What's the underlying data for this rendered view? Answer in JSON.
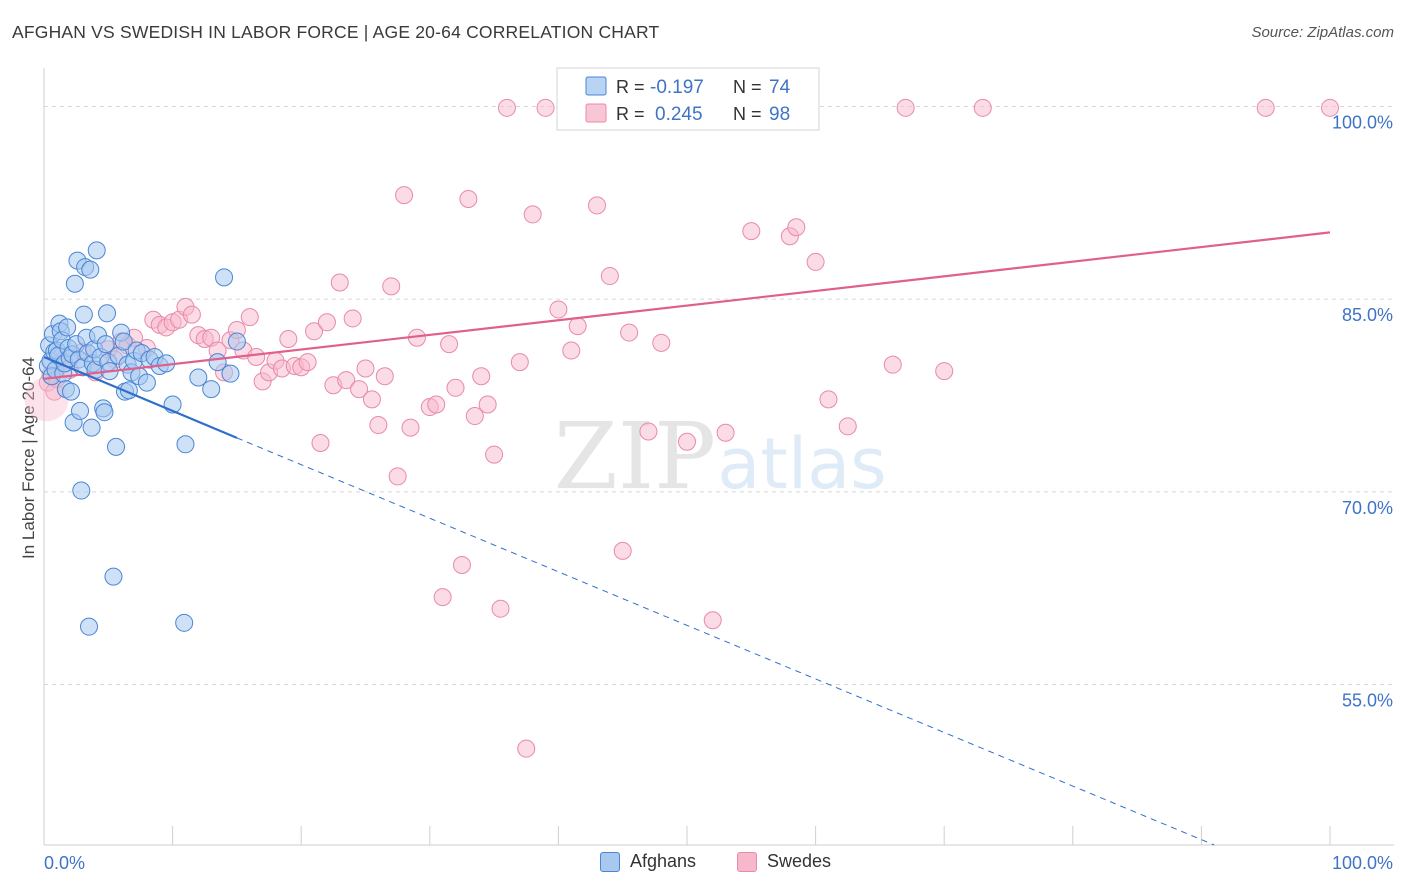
{
  "title": "AFGHAN VS SWEDISH IN LABOR FORCE | AGE 20-64 CORRELATION CHART",
  "source": "Source: ZipAtlas.com",
  "watermark": {
    "zip": "ZIP",
    "atlas": "atlas"
  },
  "colors": {
    "afghans_fill": "#a8c8f0",
    "afghans_stroke": "#4a86d4",
    "afghans_line": "#2f6fcc",
    "swedes_fill": "#f7b8cc",
    "swedes_stroke": "#e88aa8",
    "swedes_line": "#e0608c",
    "value_text": "#3f73c8",
    "grid": "#d8d8d8"
  },
  "legend_top": [
    {
      "r_label": "R =",
      "r_value": "-0.197",
      "n_label": "N =",
      "n_value": "74"
    },
    {
      "r_label": "R =",
      "r_value": "0.245",
      "n_label": "N =",
      "n_value": "98"
    }
  ],
  "legend_bottom": [
    "Afghans",
    "Swedes"
  ],
  "chart_data": {
    "type": "scatter",
    "title": "AFGHAN VS SWEDISH IN LABOR FORCE | AGE 20-64 CORRELATION CHART",
    "ylabel": "In Labor Force | Age 20-64",
    "xlim": [
      0,
      100
    ],
    "ylim": [
      42.5,
      103
    ],
    "x_tick_labels": [
      "0.0%",
      "100.0%"
    ],
    "y_ticks": [
      55,
      70,
      85,
      100
    ],
    "y_tick_labels": [
      "55.0%",
      "70.0%",
      "85.0%",
      "100.0%"
    ],
    "grid": "horizontal dashed",
    "series": [
      {
        "name": "Afghans",
        "r": -0.197,
        "n": 74,
        "trend": {
          "x": [
            0,
            15
          ],
          "y": [
            80.5,
            74.2
          ]
        },
        "trend_extended": {
          "x": [
            15,
            91
          ],
          "y": [
            74.2,
            42.5
          ]
        },
        "points": [
          [
            0.3,
            79.8
          ],
          [
            0.4,
            81.4
          ],
          [
            0.5,
            80.2
          ],
          [
            0.6,
            79.0
          ],
          [
            0.7,
            82.3
          ],
          [
            0.8,
            80.9
          ],
          [
            0.9,
            79.5
          ],
          [
            1.0,
            81.0
          ],
          [
            1.1,
            80.6
          ],
          [
            1.2,
            83.1
          ],
          [
            1.3,
            82.5
          ],
          [
            1.4,
            81.8
          ],
          [
            1.5,
            79.2
          ],
          [
            1.6,
            80.0
          ],
          [
            1.7,
            78.0
          ],
          [
            1.8,
            82.8
          ],
          [
            1.9,
            81.2
          ],
          [
            2.0,
            80.4
          ],
          [
            2.1,
            77.8
          ],
          [
            2.2,
            80.7
          ],
          [
            2.3,
            75.4
          ],
          [
            2.4,
            86.2
          ],
          [
            2.5,
            81.5
          ],
          [
            2.6,
            88.0
          ],
          [
            2.7,
            80.3
          ],
          [
            2.8,
            76.3
          ],
          [
            2.9,
            70.1
          ],
          [
            3.0,
            79.7
          ],
          [
            3.1,
            83.8
          ],
          [
            3.2,
            87.5
          ],
          [
            3.3,
            82.0
          ],
          [
            3.4,
            80.8
          ],
          [
            3.5,
            59.5
          ],
          [
            3.6,
            87.3
          ],
          [
            3.7,
            75.0
          ],
          [
            3.8,
            80.0
          ],
          [
            3.9,
            81.1
          ],
          [
            4.0,
            79.5
          ],
          [
            4.1,
            88.8
          ],
          [
            4.2,
            82.2
          ],
          [
            4.4,
            80.5
          ],
          [
            4.6,
            76.5
          ],
          [
            4.7,
            76.2
          ],
          [
            4.8,
            81.5
          ],
          [
            4.9,
            83.9
          ],
          [
            5.0,
            80.1
          ],
          [
            5.1,
            79.4
          ],
          [
            5.4,
            63.4
          ],
          [
            5.6,
            73.5
          ],
          [
            5.8,
            80.6
          ],
          [
            6.0,
            82.4
          ],
          [
            6.2,
            81.7
          ],
          [
            6.3,
            77.8
          ],
          [
            6.5,
            79.9
          ],
          [
            6.6,
            77.9
          ],
          [
            6.8,
            79.3
          ],
          [
            7.0,
            80.2
          ],
          [
            7.2,
            81.0
          ],
          [
            7.4,
            79.0
          ],
          [
            7.6,
            80.8
          ],
          [
            8.0,
            78.5
          ],
          [
            8.2,
            80.3
          ],
          [
            8.6,
            80.5
          ],
          [
            9.0,
            79.8
          ],
          [
            10.0,
            76.8
          ],
          [
            10.9,
            59.8
          ],
          [
            11.0,
            73.7
          ],
          [
            12.0,
            78.9
          ],
          [
            13.0,
            78.0
          ],
          [
            13.5,
            80.1
          ],
          [
            14.0,
            86.7
          ],
          [
            14.5,
            79.2
          ],
          [
            15.0,
            81.7
          ],
          [
            9.5,
            80.0
          ]
        ]
      },
      {
        "name": "Swedes",
        "r": 0.245,
        "n": 98,
        "trend": {
          "x": [
            0,
            100
          ],
          "y": [
            78.8,
            90.2
          ]
        },
        "points": [
          [
            0.3,
            78.5
          ],
          [
            0.5,
            79.1
          ],
          [
            0.8,
            77.8
          ],
          [
            1.0,
            78.8
          ],
          [
            1.5,
            80.2
          ],
          [
            2.0,
            79.5
          ],
          [
            3.0,
            80.9
          ],
          [
            4.0,
            79.3
          ],
          [
            5.0,
            81.1
          ],
          [
            5.5,
            80.3
          ],
          [
            6.0,
            81.7
          ],
          [
            6.5,
            81.4
          ],
          [
            7.0,
            82.0
          ],
          [
            8.0,
            81.2
          ],
          [
            8.5,
            83.4
          ],
          [
            9.0,
            83.0
          ],
          [
            9.5,
            82.8
          ],
          [
            10.0,
            83.2
          ],
          [
            10.5,
            83.4
          ],
          [
            11.0,
            84.4
          ],
          [
            11.5,
            83.8
          ],
          [
            12.0,
            82.2
          ],
          [
            12.5,
            81.9
          ],
          [
            13.0,
            82.0
          ],
          [
            13.5,
            81.0
          ],
          [
            14.0,
            79.3
          ],
          [
            14.5,
            81.8
          ],
          [
            15.0,
            82.6
          ],
          [
            15.5,
            81.0
          ],
          [
            16.0,
            83.6
          ],
          [
            16.5,
            80.5
          ],
          [
            17.0,
            78.6
          ],
          [
            17.5,
            79.3
          ],
          [
            18.0,
            80.2
          ],
          [
            18.5,
            79.6
          ],
          [
            19.0,
            81.9
          ],
          [
            19.5,
            79.8
          ],
          [
            20.0,
            79.7
          ],
          [
            20.5,
            80.1
          ],
          [
            21.0,
            82.5
          ],
          [
            21.5,
            73.8
          ],
          [
            22.0,
            83.2
          ],
          [
            22.5,
            78.3
          ],
          [
            23.0,
            86.3
          ],
          [
            23.5,
            78.7
          ],
          [
            24.0,
            83.5
          ],
          [
            24.5,
            78.0
          ],
          [
            25.0,
            79.6
          ],
          [
            25.5,
            77.2
          ],
          [
            26.0,
            75.2
          ],
          [
            26.5,
            79.0
          ],
          [
            27.0,
            86.0
          ],
          [
            27.5,
            71.2
          ],
          [
            28.0,
            93.1
          ],
          [
            28.5,
            75.0
          ],
          [
            29.0,
            82.0
          ],
          [
            30.0,
            76.6
          ],
          [
            30.5,
            76.8
          ],
          [
            31.0,
            61.8
          ],
          [
            31.5,
            81.5
          ],
          [
            32.0,
            78.1
          ],
          [
            32.5,
            64.3
          ],
          [
            33.0,
            92.8
          ],
          [
            33.5,
            75.9
          ],
          [
            34.0,
            79.0
          ],
          [
            34.5,
            76.8
          ],
          [
            35.0,
            72.9
          ],
          [
            35.5,
            60.9
          ],
          [
            36.0,
            99.9
          ],
          [
            37.0,
            80.1
          ],
          [
            37.5,
            50.0
          ],
          [
            38.0,
            91.6
          ],
          [
            39.0,
            99.9
          ],
          [
            40.0,
            84.2
          ],
          [
            41.0,
            81.0
          ],
          [
            41.5,
            82.9
          ],
          [
            42.0,
            99.9
          ],
          [
            43.0,
            92.3
          ],
          [
            44.0,
            86.8
          ],
          [
            45.0,
            65.4
          ],
          [
            45.5,
            82.4
          ],
          [
            47.0,
            74.7
          ],
          [
            48.0,
            81.6
          ],
          [
            50.0,
            73.9
          ],
          [
            52.0,
            60.0
          ],
          [
            53.0,
            74.6
          ],
          [
            55.0,
            90.3
          ],
          [
            58.0,
            89.9
          ],
          [
            58.5,
            90.6
          ],
          [
            60.0,
            87.9
          ],
          [
            61.0,
            77.2
          ],
          [
            62.5,
            75.1
          ],
          [
            66.0,
            79.9
          ],
          [
            67.0,
            99.9
          ],
          [
            70.0,
            79.4
          ],
          [
            73.0,
            99.9
          ],
          [
            100.0,
            99.9
          ],
          [
            95.0,
            99.9
          ]
        ]
      }
    ]
  }
}
